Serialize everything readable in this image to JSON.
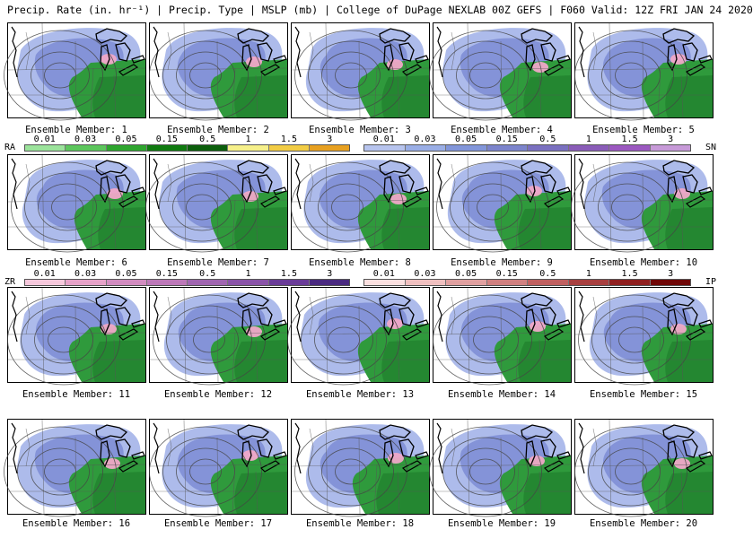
{
  "header": {
    "title": "Precip. Rate (in. hr⁻¹) | Precip. Type | MSLP (mb) | College of DuPage NEXLAB   00Z GEFS | F060 Valid: 12Z FRI JAN 24 2020"
  },
  "members": [
    {
      "label": "Ensemble Member: 1",
      "type": "a"
    },
    {
      "label": "Ensemble Member: 2",
      "type": "a"
    },
    {
      "label": "Ensemble Member: 3",
      "type": "b"
    },
    {
      "label": "Ensemble Member: 4",
      "type": "b"
    },
    {
      "label": "Ensemble Member: 5",
      "type": "b"
    },
    {
      "label": "Ensemble Member: 6",
      "type": "b"
    },
    {
      "label": "Ensemble Member: 7",
      "type": "a"
    },
    {
      "label": "Ensemble Member: 8",
      "type": "b"
    },
    {
      "label": "Ensemble Member: 9",
      "type": "a"
    },
    {
      "label": "Ensemble Member: 10",
      "type": "b"
    },
    {
      "label": "Ensemble Member: 11",
      "type": "a"
    },
    {
      "label": "Ensemble Member: 12",
      "type": "a"
    },
    {
      "label": "Ensemble Member: 13",
      "type": "b"
    },
    {
      "label": "Ensemble Member: 14",
      "type": "a"
    },
    {
      "label": "Ensemble Member: 15",
      "type": "b"
    },
    {
      "label": "Ensemble Member: 16",
      "type": "a"
    },
    {
      "label": "Ensemble Member: 17",
      "type": "a"
    },
    {
      "label": "Ensemble Member: 18",
      "type": "a"
    },
    {
      "label": "Ensemble Member: 19",
      "type": "b"
    },
    {
      "label": "Ensemble Member: 20",
      "type": "b"
    }
  ],
  "legends": {
    "rain": {
      "tag": "RA",
      "ticks": [
        "0.01",
        "0.03",
        "0.05",
        "0.15",
        "0.5",
        "1",
        "1.5",
        "3"
      ],
      "colors": [
        "#9be39b",
        "#5cc65c",
        "#2ea52e",
        "#0f7a0f",
        "#0b5e0b",
        "#f6f08a",
        "#f2cc44",
        "#e7a020"
      ]
    },
    "snow": {
      "tag": "SN",
      "ticks": [
        "0.01",
        "0.03",
        "0.05",
        "0.15",
        "0.5",
        "1",
        "1.5",
        "3"
      ],
      "colors": [
        "#b7c4ee",
        "#9aaee6",
        "#8296da",
        "#7c84cc",
        "#7a70c0",
        "#8a5cb8",
        "#9b58c0",
        "#c79ad8"
      ]
    },
    "zr": {
      "tag": "ZR",
      "ticks": [
        "0.01",
        "0.03",
        "0.05",
        "0.15",
        "0.5",
        "1",
        "1.5",
        "3"
      ],
      "colors": [
        "#f6c8dc",
        "#e6a2c8",
        "#d28cc0",
        "#bc78b8",
        "#a066b0",
        "#8a54a8",
        "#6a3c98",
        "#4a2a80"
      ]
    },
    "ip": {
      "tag": "IP",
      "ticks": [
        "0.01",
        "0.03",
        "0.05",
        "0.15",
        "0.5",
        "1",
        "1.5",
        "3"
      ],
      "colors": [
        "#fbe0e0",
        "#f0c0c0",
        "#e0a0a0",
        "#d08080",
        "#c06060",
        "#a84040",
        "#902020",
        "#700808"
      ]
    }
  },
  "colors": {
    "snow": "#7f8fd6",
    "snow_light": "#a9b7ea",
    "rain": "#2f9a3c",
    "rain_dark": "#1f7f2c",
    "mix": "#f0a8c8",
    "land": "#ffffff"
  }
}
